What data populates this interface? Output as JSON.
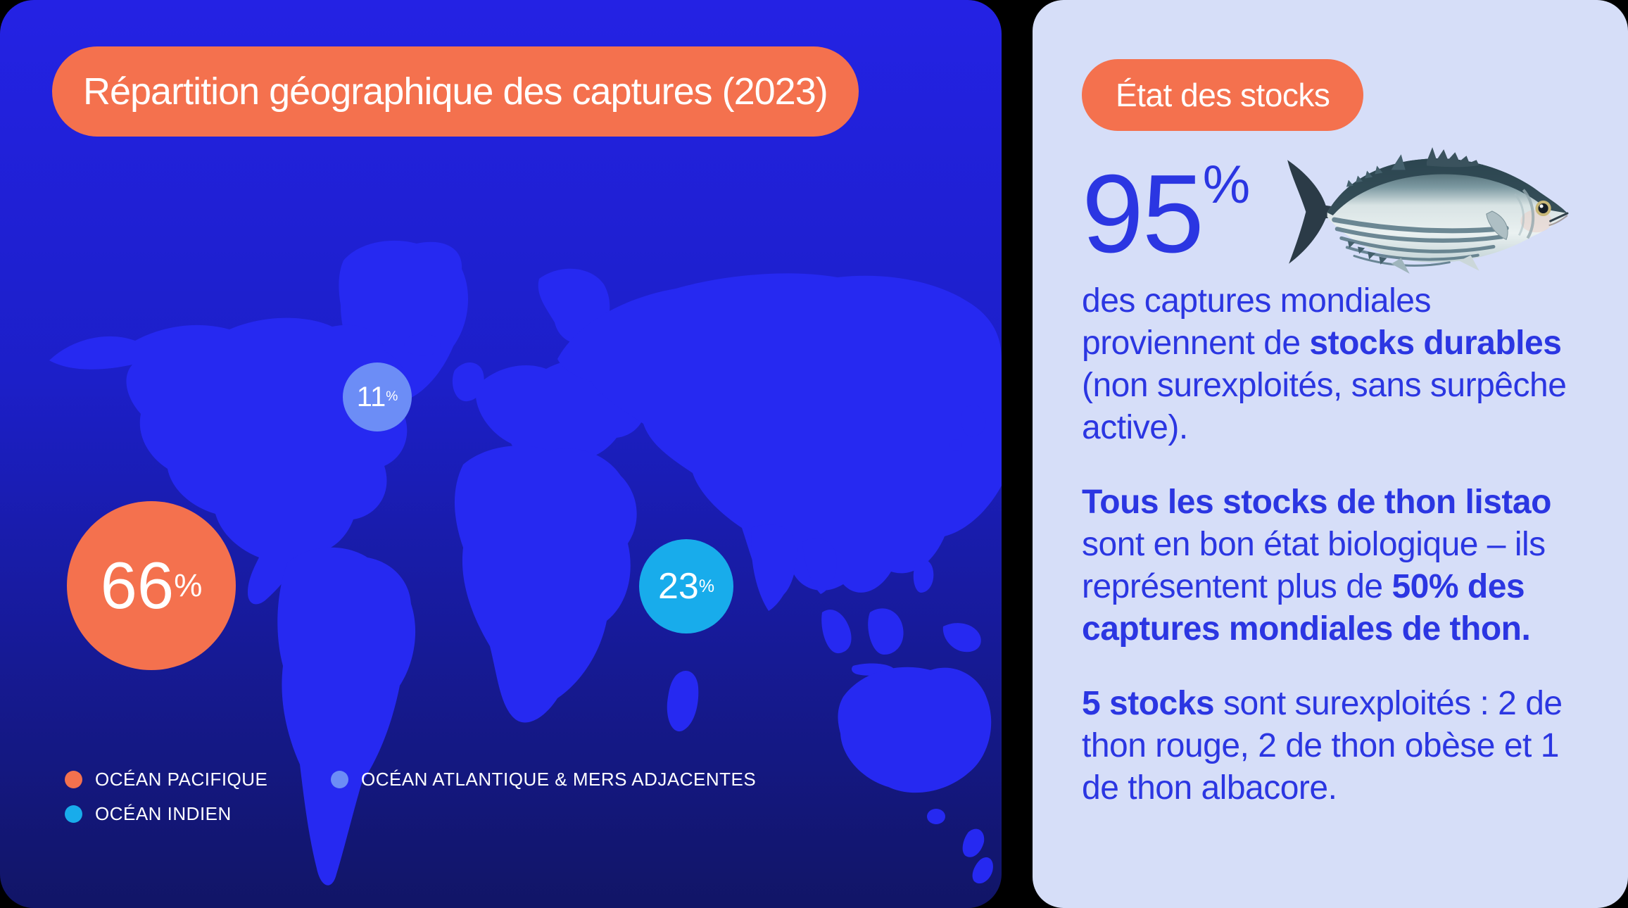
{
  "colors": {
    "page_bg": "#000000",
    "accent_coral": "#F4714E",
    "left_panel_top": "#2422E4",
    "left_panel_mid": "#1C1FC8",
    "left_panel_bottom": "#111566",
    "map_land": "#2629F1",
    "right_panel_bg": "#D6DEF8",
    "text_blue": "#2B36E2",
    "marker_text": "#FFFFFF"
  },
  "left_panel": {
    "title": "Répartition géographique des captures (2023)",
    "markers": [
      {
        "ocean": "Océan Pacifique",
        "value": "66",
        "unit": "%",
        "color": "#F4714E"
      },
      {
        "ocean": "Océan Atlantique & mers adjacentes",
        "value": "11",
        "unit": "%",
        "color": "#6C8DF6"
      },
      {
        "ocean": "Océan Indien",
        "value": "23",
        "unit": "%",
        "color": "#18ACEB"
      }
    ],
    "legend": [
      {
        "label": "OCÉAN PACIFIQUE",
        "color": "#F4714E"
      },
      {
        "label": "OCÉAN ATLANTIQUE & MERS ADJACENTES",
        "color": "#6C8DF6"
      },
      {
        "label": "OCÉAN INDIEN",
        "color": "#18ACEB"
      }
    ]
  },
  "right_panel": {
    "title": "État des stocks",
    "stat": {
      "value": "95",
      "unit": "%"
    },
    "fish_icon": "skipjack-tuna-illustration",
    "paragraphs": [
      [
        {
          "text": "des captures mondiales proviennent de ",
          "bold": false
        },
        {
          "text": "stocks durables",
          "bold": true
        },
        {
          "text": " (non surexploités, sans surpêche active).",
          "bold": false
        }
      ],
      [
        {
          "text": "Tous les stocks de thon listao",
          "bold": true
        },
        {
          "text": " sont en bon état biologique – ils représentent plus de ",
          "bold": false
        },
        {
          "text": "50% des captures mondiales de thon.",
          "bold": true
        }
      ],
      [
        {
          "text": "5 stocks",
          "bold": true
        },
        {
          "text": " sont surexploités : 2 de thon rouge, 2 de thon obèse et 1 de thon albacore.",
          "bold": false
        }
      ]
    ]
  },
  "chart_data": {
    "type": "map_bubble",
    "title": "Répartition géographique des captures (2023)",
    "categories": [
      "Océan Pacifique",
      "Océan Atlantique & mers adjacentes",
      "Océan Indien"
    ],
    "values": [
      66,
      11,
      23
    ],
    "unit": "%",
    "legend_position": "bottom-left",
    "related_stats": {
      "captures_from_sustainable_stocks_pct": 95,
      "listao_share_of_world_tuna_catch": "plus de 50%",
      "overfished_stocks_total": 5,
      "overfished_stocks_detail": "2 de thon rouge, 2 de thon obèse et 1 de thon albacore"
    }
  }
}
